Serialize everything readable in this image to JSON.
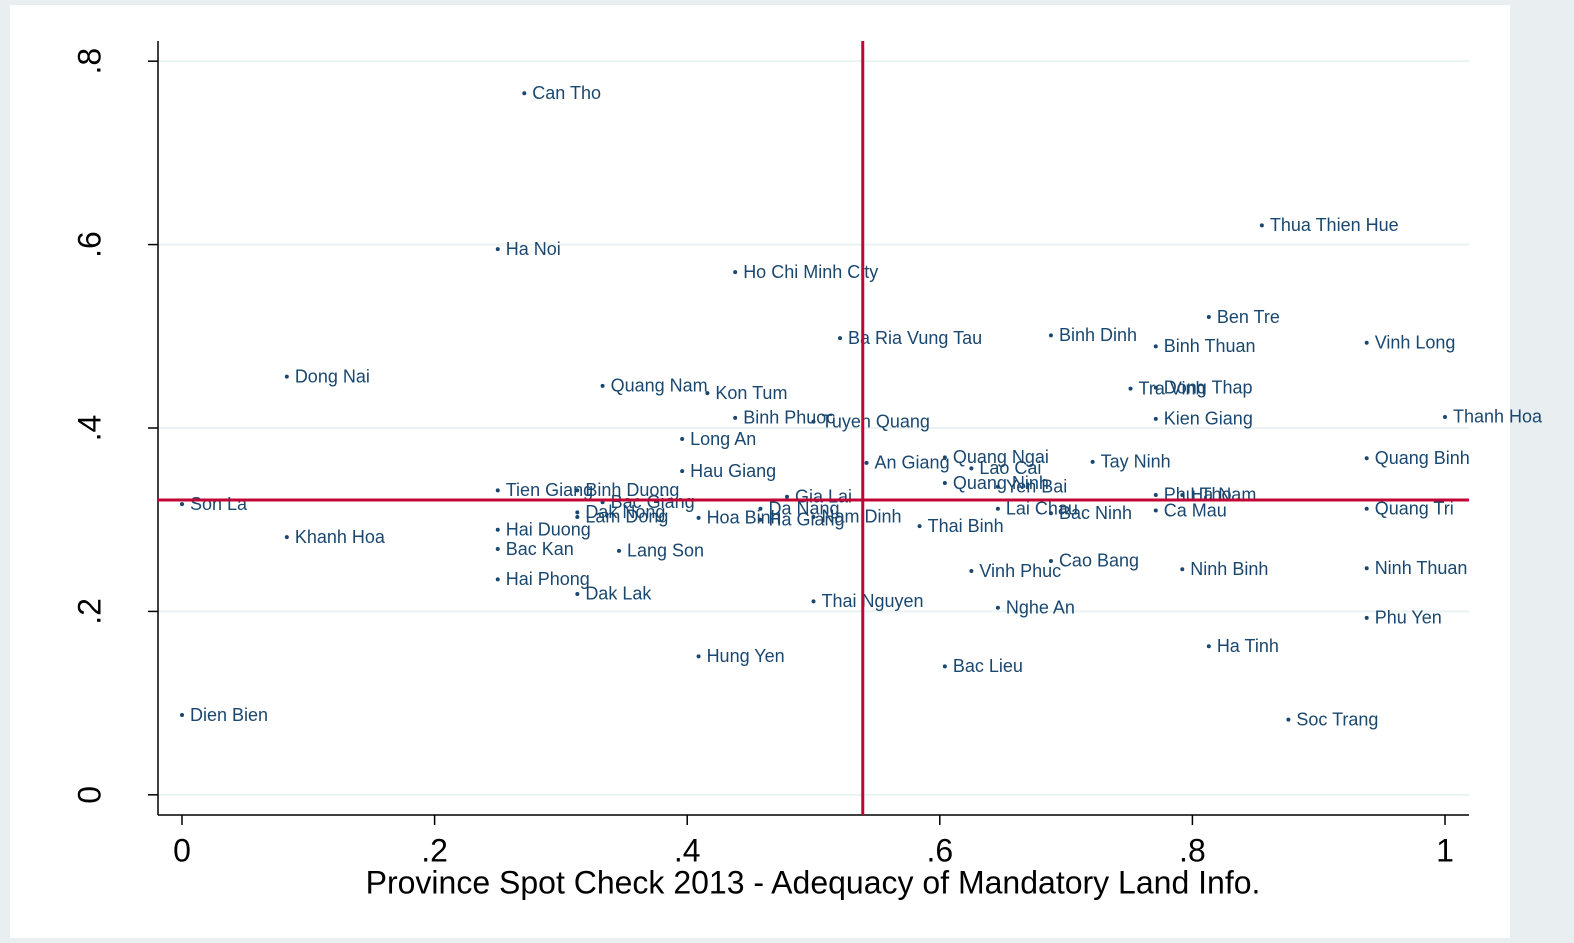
{
  "chart_data": {
    "type": "scatter",
    "xlabel": "Province Spot Check 2013 - Adequacy of Mandatory Land Info.",
    "color": "#1a476f",
    "refcolor": "#c10534",
    "grid": true,
    "xline": 0.539,
    "yline": 0.3215,
    "xlim": [
      -0.019,
      1.019
    ],
    "ylim": [
      -0.022,
      0.822
    ],
    "xticks": [
      0,
      {
        "value": 0.2,
        "label": ".2"
      },
      {
        "value": 0.4,
        "label": ".4"
      },
      {
        "value": 0.6,
        "label": ".6"
      },
      {
        "value": 0.8,
        "label": ".8"
      },
      1
    ],
    "yticks": [
      0,
      {
        "value": 0.2,
        "label": ".2"
      },
      {
        "value": 0.4,
        "label": ".4"
      },
      {
        "value": 0.6,
        "label": ".6"
      },
      {
        "value": 0.8,
        "label": ".8"
      }
    ],
    "labels": [
      "Can Tho",
      "Ha Noi",
      "Ho Chi Minh City",
      "Thua Thien Hue",
      "Ben Tre",
      "Ba Ria Vung Tau",
      "Binh Dinh",
      "Binh Thuan",
      "Vinh Long",
      "Dong Nai",
      "Quang Nam",
      "Kon Tum",
      "Tra Vinh",
      "Dong Thap",
      "Binh Phuoc",
      "Tuyen Quang",
      "Kien Giang",
      "Thanh Hoa",
      "Long An",
      "Quang Ngai",
      "An Giang",
      "Lao Cai",
      "Tay Ninh",
      "Quang Binh",
      "Hau Giang",
      "Quang Ninh",
      "Yen Bai",
      "Tien Giang",
      "Binh Duong",
      "Bac Giang",
      "Phu Tho",
      "Ha Nam",
      "Gia Lai",
      "Son La",
      "Dak Nong",
      "Lam Dong",
      "Hoa Binh",
      "Da Nang",
      "Ha Giang",
      "Nam Dinh",
      "Lai Chau",
      "Bac Ninh",
      "Ca Mau",
      "Quang Tri",
      "Thai Binh",
      "Hai Duong",
      "Khanh Hoa",
      "Bac Kan",
      "Lang Son",
      "Cao Bang",
      "Vinh Phuc",
      "Ninh Binh",
      "Ninh Thuan",
      "Hai Phong",
      "Dak Lak",
      "Thai Nguyen",
      "Nghe An",
      "Phu Yen",
      "Ha Tinh",
      "Hung Yen",
      "Bac Lieu",
      "Dien Bien",
      "Soc Trang"
    ],
    "x": [
      0.271,
      0.25,
      0.438,
      0.855,
      0.813,
      0.521,
      0.688,
      0.771,
      0.938,
      0.083,
      0.333,
      0.416,
      0.751,
      0.771,
      0.438,
      0.5,
      0.771,
      1.0,
      0.396,
      0.604,
      0.542,
      0.625,
      0.721,
      0.938,
      0.396,
      0.604,
      0.646,
      0.25,
      0.313,
      0.333,
      0.771,
      0.792,
      0.479,
      0,
      0.313,
      0.313,
      0.409,
      0.458,
      0.458,
      0.5,
      0.646,
      0.688,
      0.771,
      0.938,
      0.584,
      0.25,
      0.083,
      0.25,
      0.346,
      0.688,
      0.625,
      0.792,
      0.938,
      0.25,
      0.313,
      0.5,
      0.646,
      0.938,
      0.813,
      0.409,
      0.604,
      0,
      0.876
    ],
    "values": [
      0.765,
      0.595,
      0.57,
      0.621,
      0.521,
      0.498,
      0.501,
      0.489,
      0.493,
      0.456,
      0.446,
      0.438,
      0.443,
      0.444,
      0.411,
      0.407,
      0.41,
      0.412,
      0.388,
      0.368,
      0.362,
      0.356,
      0.363,
      0.367,
      0.353,
      0.34,
      0.336,
      0.332,
      0.332,
      0.319,
      0.327,
      0.327,
      0.325,
      0.317,
      0.308,
      0.303,
      0.302,
      0.312,
      0.3,
      0.303,
      0.312,
      0.307,
      0.31,
      0.312,
      0.293,
      0.289,
      0.281,
      0.268,
      0.266,
      0.255,
      0.244,
      0.246,
      0.247,
      0.235,
      0.219,
      0.211,
      0.204,
      0.193,
      0.162,
      0.151,
      0.14,
      0.087,
      0.082
    ]
  }
}
